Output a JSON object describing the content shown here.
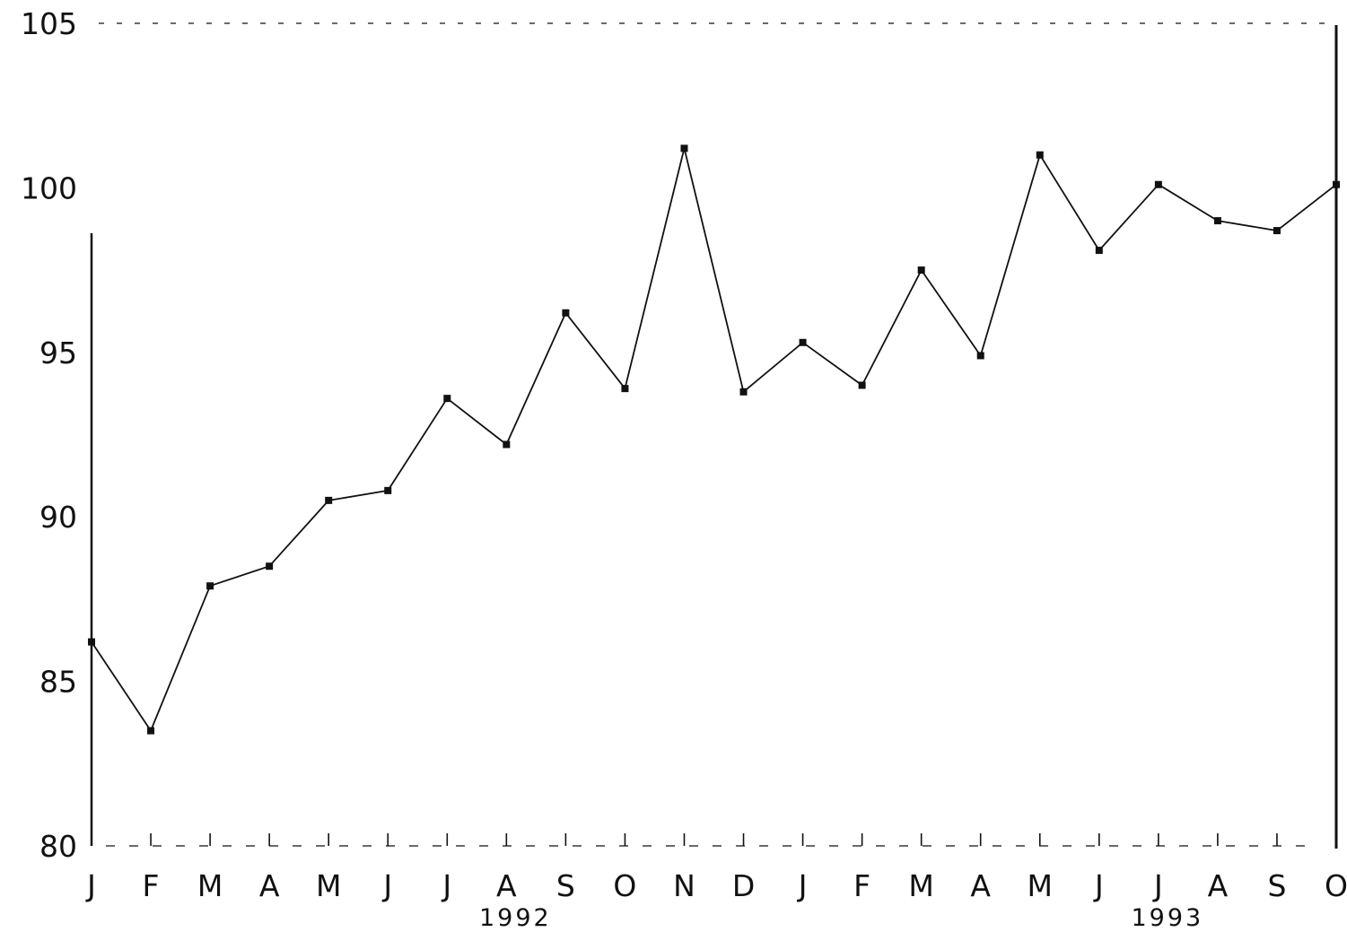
{
  "chart_data": {
    "type": "line",
    "title": "",
    "xlabel": "",
    "ylabel": "",
    "x": [
      "J",
      "F",
      "M",
      "A",
      "M",
      "J",
      "J",
      "A",
      "S",
      "O",
      "N",
      "D",
      "J",
      "F",
      "M",
      "A",
      "M",
      "J",
      "J",
      "A",
      "S",
      "O"
    ],
    "year_labels": [
      {
        "label": "1992",
        "index": 7
      },
      {
        "label": "1993",
        "index": 18
      }
    ],
    "series": [
      {
        "values": [
          86.2,
          83.5,
          87.9,
          88.5,
          90.5,
          90.8,
          93.6,
          92.2,
          96.2,
          93.9,
          101.2,
          93.8,
          95.3,
          94.0,
          97.5,
          94.9,
          101.0,
          98.1,
          100.1,
          99.0,
          98.7,
          100.1
        ]
      }
    ],
    "yticks": [
      80,
      85,
      90,
      95,
      100,
      105
    ],
    "ylim": [
      80,
      105
    ],
    "grid": false,
    "colors": {
      "line": "#111111",
      "axis": "#111111",
      "background": "#ffffff"
    }
  }
}
